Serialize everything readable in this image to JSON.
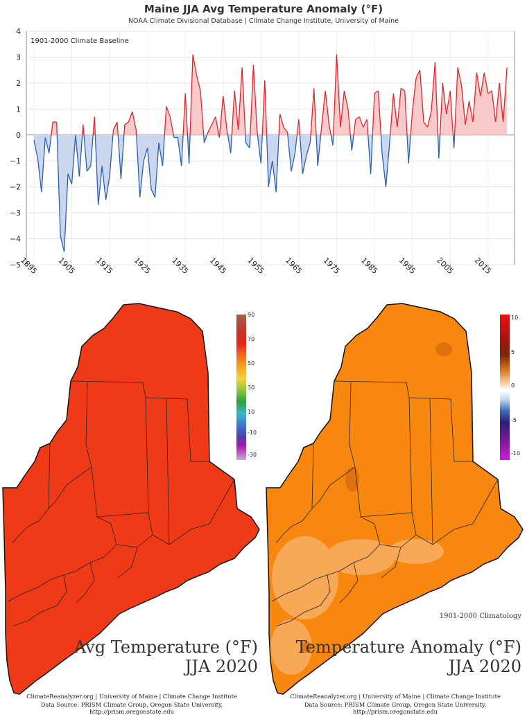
{
  "chart_data": {
    "type": "area",
    "title": "Maine JJA Avg Temperature Anomaly (°F)",
    "subtitle": "NOAA Climate Divisional Database | Climate Change Institute, University of Maine",
    "baseline_label": "1901-2000 Climate Baseline",
    "xlabel": "",
    "ylabel": "",
    "x_ticks": [
      "1895",
      "1905",
      "1915",
      "1925",
      "1935",
      "1945",
      "1955",
      "1965",
      "1975",
      "1985",
      "1995",
      "2005",
      "2015"
    ],
    "y_ticks": [
      4,
      3,
      2,
      1,
      0,
      -1,
      -2,
      -3,
      -4,
      -5
    ],
    "xlim": [
      1893,
      2022
    ],
    "ylim": [
      -5,
      4
    ],
    "grid": true,
    "positive_color": "#e0262b",
    "negative_color": "#2a5fb0",
    "positive_fill": "#f7c9c9",
    "negative_fill": "#c9d6ee",
    "x": [
      1895,
      1896,
      1897,
      1898,
      1899,
      1900,
      1901,
      1902,
      1903,
      1904,
      1905,
      1906,
      1907,
      1908,
      1909,
      1910,
      1911,
      1912,
      1913,
      1914,
      1915,
      1916,
      1917,
      1918,
      1919,
      1920,
      1921,
      1922,
      1923,
      1924,
      1925,
      1926,
      1927,
      1928,
      1929,
      1930,
      1931,
      1932,
      1933,
      1934,
      1935,
      1936,
      1937,
      1938,
      1939,
      1940,
      1941,
      1942,
      1943,
      1944,
      1945,
      1946,
      1947,
      1948,
      1949,
      1950,
      1951,
      1952,
      1953,
      1954,
      1955,
      1956,
      1957,
      1958,
      1959,
      1960,
      1961,
      1962,
      1963,
      1964,
      1965,
      1966,
      1967,
      1968,
      1969,
      1970,
      1971,
      1972,
      1973,
      1974,
      1975,
      1976,
      1977,
      1978,
      1979,
      1980,
      1981,
      1982,
      1983,
      1984,
      1985,
      1986,
      1987,
      1988,
      1989,
      1990,
      1991,
      1992,
      1993,
      1994,
      1995,
      1996,
      1997,
      1998,
      1999,
      2000,
      2001,
      2002,
      2003,
      2004,
      2005,
      2006,
      2007,
      2008,
      2009,
      2010,
      2011,
      2012,
      2013,
      2014,
      2015,
      2016,
      2017,
      2018,
      2019,
      2020
    ],
    "values": [
      -0.2,
      -0.9,
      -2.2,
      -0.1,
      -0.7,
      0.5,
      0.5,
      -3.9,
      -4.5,
      -1.5,
      -1.9,
      0.0,
      -1.6,
      0.4,
      -1.4,
      -1.2,
      0.7,
      -2.7,
      -1.2,
      -2.5,
      -1.6,
      0.2,
      0.5,
      -1.7,
      0.4,
      0.5,
      0.9,
      0.2,
      -2.4,
      -1.0,
      -0.5,
      -2.1,
      -2.4,
      -0.3,
      -1.2,
      1.1,
      0.7,
      -0.1,
      -0.1,
      -1.2,
      1.6,
      -1.1,
      3.1,
      2.3,
      1.7,
      -0.3,
      0.1,
      0.4,
      0.7,
      -0.1,
      1.5,
      0.2,
      -0.7,
      1.7,
      0.2,
      2.6,
      -0.3,
      -0.5,
      2.7,
      0.1,
      -1.1,
      2.1,
      -2.0,
      -1.0,
      -2.2,
      0.8,
      0.3,
      0.1,
      -1.4,
      -0.7,
      0.6,
      -1.5,
      -0.8,
      -0.3,
      1.8,
      -1.2,
      0.3,
      1.7,
      0.4,
      -0.4,
      3.1,
      0.3,
      1.7,
      1.0,
      -0.6,
      0.6,
      0.7,
      0.3,
      0.6,
      -1.5,
      1.6,
      1.7,
      -0.7,
      -2.0,
      -0.3,
      1.6,
      0.3,
      1.8,
      1.7,
      -1.1,
      0.9,
      2.2,
      2.5,
      0.5,
      0.3,
      0.9,
      2.8,
      -0.9,
      2.0,
      0.8,
      1.7,
      -0.5,
      2.6,
      1.9,
      0.4,
      1.3,
      0.5,
      2.4,
      1.5,
      2.4,
      1.6,
      1.7,
      0.5,
      2.0,
      0.5,
      2.6
    ]
  },
  "maps": {
    "left": {
      "title_line1": "Avg Temperature (°F)",
      "title_line2": "JJA 2020",
      "fill_color": "#ef3a17",
      "legend_ticks": [
        "90",
        "70",
        "50",
        "30",
        "10",
        "-10",
        "-30"
      ],
      "credit_line1": "ClimateReanalyzer.org | University of Maine | Climate Change Institute",
      "credit_line2": "Data Source: PRISM Climate Group, Oregon State University, http://prism.oregonstate.edu"
    },
    "right": {
      "title_line1": "Temperature Anomaly (°F)",
      "title_line2": "JJA 2020",
      "climatology_note": "1901-2000 Climatology",
      "fill_color": "#f7870f",
      "legend_ticks": [
        "10",
        "5",
        "0",
        "-5",
        "-10"
      ],
      "credit_line1": "ClimateReanalyzer.org | University of Maine | Climate Change Institute",
      "credit_line2": "Data Source: PRISM Climate Group, Oregon State University, http://prism.oregonstate.edu"
    }
  }
}
